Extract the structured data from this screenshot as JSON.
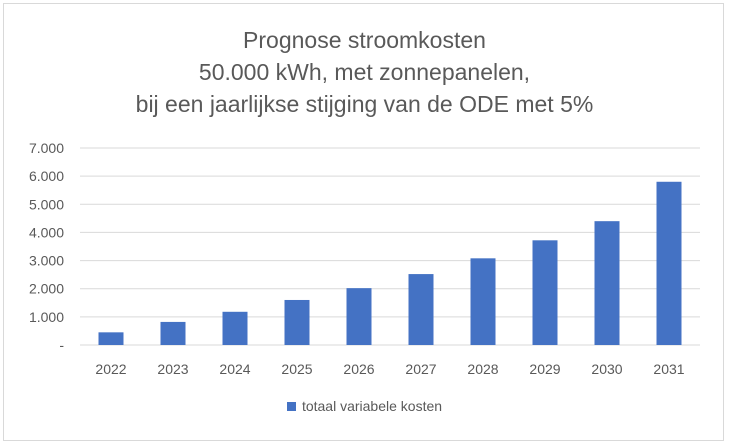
{
  "chart_data": {
    "type": "bar",
    "title_lines": [
      "Prognose stroomkosten",
      "50.000 kWh, met zonnepanelen,",
      "bij een jaarlijkse stijging van de ODE met 5%"
    ],
    "categories": [
      "2022",
      "2023",
      "2024",
      "2025",
      "2026",
      "2027",
      "2028",
      "2029",
      "2030",
      "2031"
    ],
    "series": [
      {
        "name": "totaal variabele kosten",
        "values": [
          450,
          820,
          1180,
          1600,
          2020,
          2520,
          3080,
          3720,
          4400,
          5800
        ],
        "color": "#4472c4"
      }
    ],
    "yticks": [
      {
        "value": 0,
        "label": "-"
      },
      {
        "value": 1000,
        "label": "1.000"
      },
      {
        "value": 2000,
        "label": "2.000"
      },
      {
        "value": 3000,
        "label": "3.000"
      },
      {
        "value": 4000,
        "label": "4.000"
      },
      {
        "value": 5000,
        "label": "5.000"
      },
      {
        "value": 6000,
        "label": "6.000"
      },
      {
        "value": 7000,
        "label": "7.000"
      }
    ],
    "ylim": [
      0,
      7000
    ],
    "grid": true,
    "legend_position": "bottom",
    "gridline_color": "#d9d9d9"
  }
}
